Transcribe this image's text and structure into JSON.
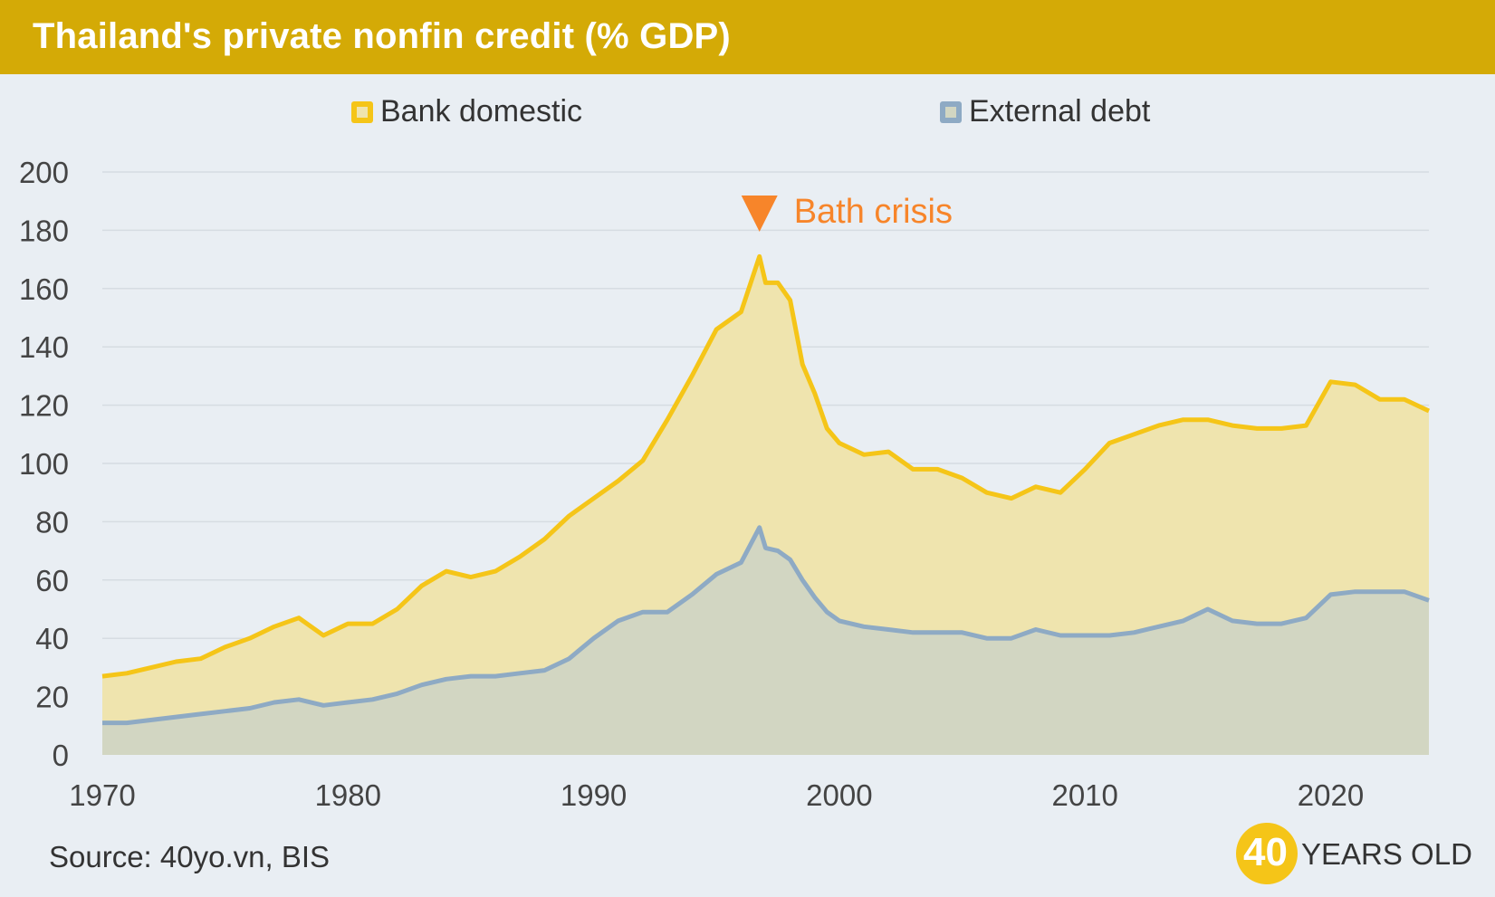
{
  "header": {
    "title": "Thailand's private nonfin credit (% GDP)"
  },
  "footer": {
    "source": "Source: 40yo.vn, BIS"
  },
  "brand": {
    "number": "40",
    "text": "YEARS OLD"
  },
  "colors": {
    "header_bg": "#d4aa06",
    "bank_line": "#f5c518",
    "bank_fill": "#efe4ae",
    "external_line": "#8eaac4",
    "external_fill": "#d2d6c2",
    "annotation": "#f7852a"
  },
  "chart_data": {
    "type": "area",
    "legend_position": "top",
    "grid": true,
    "xlim": [
      1970,
      2024
    ],
    "ylim": [
      0,
      200
    ],
    "x_ticks": [
      "1970",
      "1980",
      "1990",
      "2000",
      "2010",
      "2020"
    ],
    "y_ticks": [
      "0",
      "20",
      "40",
      "60",
      "80",
      "100",
      "120",
      "140",
      "160",
      "180",
      "200"
    ],
    "x": [
      1970,
      1971,
      1972,
      1973,
      1974,
      1975,
      1976,
      1977,
      1978,
      1979,
      1980,
      1981,
      1982,
      1983,
      1984,
      1985,
      1986,
      1987,
      1988,
      1989,
      1990,
      1991,
      1992,
      1993,
      1994,
      1995,
      1996,
      1996.75,
      1997,
      1997.5,
      1998,
      1998.5,
      1999,
      1999.5,
      2000,
      2001,
      2002,
      2003,
      2004,
      2005,
      2006,
      2007,
      2008,
      2009,
      2010,
      2011,
      2012,
      2013,
      2014,
      2015,
      2016,
      2017,
      2018,
      2019,
      2020,
      2021,
      2022,
      2023,
      2024
    ],
    "series": [
      {
        "name": "Bank domestic",
        "values": [
          27,
          28,
          30,
          32,
          33,
          37,
          40,
          44,
          47,
          41,
          45,
          45,
          50,
          58,
          63,
          61,
          63,
          68,
          74,
          82,
          88,
          94,
          101,
          115,
          130,
          146,
          152,
          171,
          162,
          162,
          156,
          134,
          124,
          112,
          107,
          103,
          104,
          98,
          98,
          95,
          90,
          88,
          92,
          90,
          98,
          107,
          110,
          113,
          115,
          115,
          113,
          112,
          112,
          113,
          128,
          127,
          122,
          122,
          118
        ]
      },
      {
        "name": "External debt",
        "values": [
          11,
          11,
          12,
          13,
          14,
          15,
          16,
          18,
          19,
          17,
          18,
          19,
          21,
          24,
          26,
          27,
          27,
          28,
          29,
          33,
          40,
          46,
          49,
          49,
          55,
          62,
          66,
          78,
          71,
          70,
          67,
          60,
          54,
          49,
          46,
          44,
          43,
          42,
          42,
          42,
          40,
          40,
          43,
          41,
          41,
          41,
          42,
          44,
          46,
          50,
          46,
          45,
          45,
          47,
          55,
          56,
          56,
          56,
          53
        ]
      }
    ],
    "annotations": [
      {
        "text": "Bath crisis",
        "x": 1996.75
      }
    ]
  }
}
